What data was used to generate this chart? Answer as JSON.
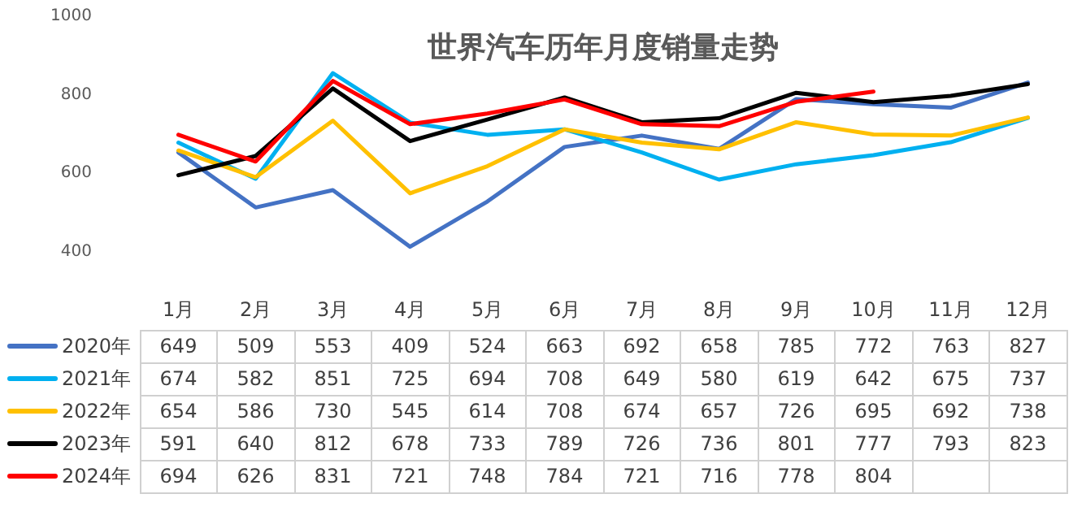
{
  "chart_data": {
    "type": "line",
    "title": "世界汽车历年月度销量走势",
    "categories": [
      "1月",
      "2月",
      "3月",
      "4月",
      "5月",
      "6月",
      "7月",
      "8月",
      "9月",
      "10月",
      "11月",
      "12月"
    ],
    "series": [
      {
        "name": "2020年",
        "color": "#4472c4",
        "values": [
          649,
          509,
          553,
          409,
          524,
          663,
          692,
          658,
          785,
          772,
          763,
          827
        ]
      },
      {
        "name": "2021年",
        "color": "#00b0f0",
        "values": [
          674,
          582,
          851,
          725,
          694,
          708,
          649,
          580,
          619,
          642,
          675,
          737
        ]
      },
      {
        "name": "2022年",
        "color": "#ffc000",
        "values": [
          654,
          586,
          730,
          545,
          614,
          708,
          674,
          657,
          726,
          695,
          692,
          738
        ]
      },
      {
        "name": "2023年",
        "color": "#000000",
        "values": [
          591,
          640,
          812,
          678,
          733,
          789,
          726,
          736,
          801,
          777,
          793,
          823
        ]
      },
      {
        "name": "2024年",
        "color": "#ff0000",
        "values": [
          694,
          626,
          831,
          721,
          748,
          784,
          721,
          716,
          778,
          804,
          null,
          null
        ]
      }
    ],
    "ylim": [
      400,
      1000
    ],
    "yticks": [
      400,
      600,
      800,
      1000
    ],
    "grid": false,
    "legend": "bottom",
    "data_labels": true
  }
}
